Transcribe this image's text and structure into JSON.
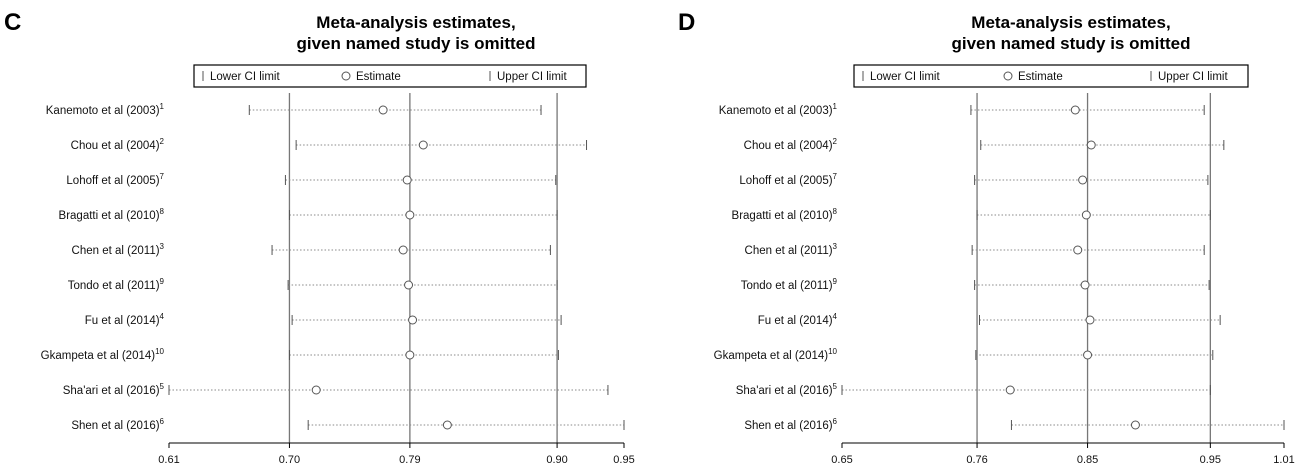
{
  "chart_data": [
    {
      "type": "forest",
      "panel_label": "C",
      "title_line1": "Meta-analysis estimates,",
      "title_line2": "given named study is omitted",
      "legend": {
        "lower": "Lower CI limit",
        "estimate": "Estimate",
        "upper": "Upper CI limit"
      },
      "xlim": [
        0.61,
        0.95
      ],
      "xticks": [
        "0.61",
        "0.70",
        "0.79",
        "0.90",
        "0.95"
      ],
      "reference_lines": [
        0.7,
        0.79,
        0.9
      ],
      "studies": [
        {
          "label": "Kanemoto et al (2003)",
          "sup": "1",
          "lower": 0.67,
          "estimate": 0.77,
          "upper": 0.888
        },
        {
          "label": "Chou et al (2004)",
          "sup": "2",
          "lower": 0.705,
          "estimate": 0.8,
          "upper": 0.922
        },
        {
          "label": "Lohoff et al (2005)",
          "sup": "7",
          "lower": 0.697,
          "estimate": 0.788,
          "upper": 0.899
        },
        {
          "label": "Bragatti et al (2010)",
          "sup": "8",
          "lower": 0.7,
          "estimate": 0.79,
          "upper": 0.9
        },
        {
          "label": "Chen et al (2011)",
          "sup": "3",
          "lower": 0.687,
          "estimate": 0.785,
          "upper": 0.895
        },
        {
          "label": "Tondo et al (2011)",
          "sup": "9",
          "lower": 0.699,
          "estimate": 0.789,
          "upper": 0.9
        },
        {
          "label": "Fu et al (2014)",
          "sup": "4",
          "lower": 0.702,
          "estimate": 0.792,
          "upper": 0.903
        },
        {
          "label": "Gkampeta et al (2014)",
          "sup": "10",
          "lower": 0.7,
          "estimate": 0.79,
          "upper": 0.901
        },
        {
          "label": "Sha'ari et al (2016)",
          "sup": "5",
          "lower": 0.61,
          "estimate": 0.72,
          "upper": 0.938
        },
        {
          "label": "Shen et al (2016)",
          "sup": "6",
          "lower": 0.714,
          "estimate": 0.818,
          "upper": 0.95
        }
      ]
    },
    {
      "type": "forest",
      "panel_label": "D",
      "title_line1": "Meta-analysis estimates,",
      "title_line2": "given named study is omitted",
      "legend": {
        "lower": "Lower CI limit",
        "estimate": "Estimate",
        "upper": "Upper CI limit"
      },
      "xlim": [
        0.65,
        1.01
      ],
      "xticks": [
        "0.65",
        "0.76",
        "0.85",
        "0.95",
        "1.01"
      ],
      "reference_lines": [
        0.76,
        0.85,
        0.95
      ],
      "studies": [
        {
          "label": "Kanemoto et al (2003)",
          "sup": "1",
          "lower": 0.755,
          "estimate": 0.84,
          "upper": 0.945
        },
        {
          "label": "Chou et al (2004)",
          "sup": "2",
          "lower": 0.763,
          "estimate": 0.853,
          "upper": 0.961
        },
        {
          "label": "Lohoff et al (2005)",
          "sup": "7",
          "lower": 0.758,
          "estimate": 0.846,
          "upper": 0.948
        },
        {
          "label": "Bragatti et al (2010)",
          "sup": "8",
          "lower": 0.76,
          "estimate": 0.849,
          "upper": 0.95
        },
        {
          "label": "Chen et al (2011)",
          "sup": "3",
          "lower": 0.756,
          "estimate": 0.842,
          "upper": 0.945
        },
        {
          "label": "Tondo et al (2011)",
          "sup": "9",
          "lower": 0.758,
          "estimate": 0.848,
          "upper": 0.949
        },
        {
          "label": "Fu et al (2014)",
          "sup": "4",
          "lower": 0.762,
          "estimate": 0.852,
          "upper": 0.958
        },
        {
          "label": "Gkampeta et al (2014)",
          "sup": "10",
          "lower": 0.759,
          "estimate": 0.85,
          "upper": 0.952
        },
        {
          "label": "Sha'ari et al (2016)",
          "sup": "5",
          "lower": 0.65,
          "estimate": 0.787,
          "upper": 0.95
        },
        {
          "label": "Shen et al (2016)",
          "sup": "6",
          "lower": 0.788,
          "estimate": 0.889,
          "upper": 1.01
        }
      ]
    }
  ]
}
